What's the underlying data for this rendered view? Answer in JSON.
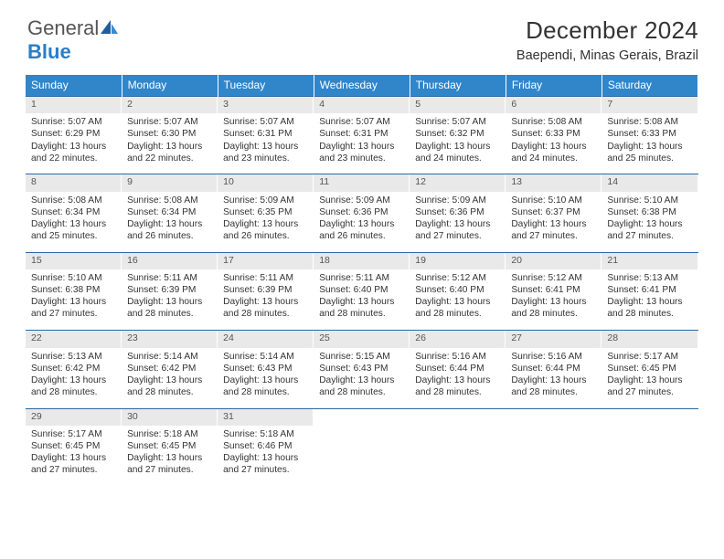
{
  "brand": {
    "part1": "General",
    "part2": "Blue"
  },
  "header": {
    "title": "December 2024",
    "location": "Baependi, Minas Gerais, Brazil"
  },
  "colors": {
    "header_bg": "#3185c9",
    "header_text": "#ffffff",
    "daynum_bg": "#e9e9e9",
    "row_border": "#2b69a3",
    "body_text": "#333333",
    "brand_gray": "#555555",
    "brand_blue": "#2a7ec6",
    "page_bg": "#ffffff"
  },
  "weekdays": [
    "Sunday",
    "Monday",
    "Tuesday",
    "Wednesday",
    "Thursday",
    "Friday",
    "Saturday"
  ],
  "days": [
    {
      "n": 1,
      "sr": "5:07 AM",
      "ss": "6:29 PM",
      "dl": "13 hours and 22 minutes."
    },
    {
      "n": 2,
      "sr": "5:07 AM",
      "ss": "6:30 PM",
      "dl": "13 hours and 22 minutes."
    },
    {
      "n": 3,
      "sr": "5:07 AM",
      "ss": "6:31 PM",
      "dl": "13 hours and 23 minutes."
    },
    {
      "n": 4,
      "sr": "5:07 AM",
      "ss": "6:31 PM",
      "dl": "13 hours and 23 minutes."
    },
    {
      "n": 5,
      "sr": "5:07 AM",
      "ss": "6:32 PM",
      "dl": "13 hours and 24 minutes."
    },
    {
      "n": 6,
      "sr": "5:08 AM",
      "ss": "6:33 PM",
      "dl": "13 hours and 24 minutes."
    },
    {
      "n": 7,
      "sr": "5:08 AM",
      "ss": "6:33 PM",
      "dl": "13 hours and 25 minutes."
    },
    {
      "n": 8,
      "sr": "5:08 AM",
      "ss": "6:34 PM",
      "dl": "13 hours and 25 minutes."
    },
    {
      "n": 9,
      "sr": "5:08 AM",
      "ss": "6:34 PM",
      "dl": "13 hours and 26 minutes."
    },
    {
      "n": 10,
      "sr": "5:09 AM",
      "ss": "6:35 PM",
      "dl": "13 hours and 26 minutes."
    },
    {
      "n": 11,
      "sr": "5:09 AM",
      "ss": "6:36 PM",
      "dl": "13 hours and 26 minutes."
    },
    {
      "n": 12,
      "sr": "5:09 AM",
      "ss": "6:36 PM",
      "dl": "13 hours and 27 minutes."
    },
    {
      "n": 13,
      "sr": "5:10 AM",
      "ss": "6:37 PM",
      "dl": "13 hours and 27 minutes."
    },
    {
      "n": 14,
      "sr": "5:10 AM",
      "ss": "6:38 PM",
      "dl": "13 hours and 27 minutes."
    },
    {
      "n": 15,
      "sr": "5:10 AM",
      "ss": "6:38 PM",
      "dl": "13 hours and 27 minutes."
    },
    {
      "n": 16,
      "sr": "5:11 AM",
      "ss": "6:39 PM",
      "dl": "13 hours and 28 minutes."
    },
    {
      "n": 17,
      "sr": "5:11 AM",
      "ss": "6:39 PM",
      "dl": "13 hours and 28 minutes."
    },
    {
      "n": 18,
      "sr": "5:11 AM",
      "ss": "6:40 PM",
      "dl": "13 hours and 28 minutes."
    },
    {
      "n": 19,
      "sr": "5:12 AM",
      "ss": "6:40 PM",
      "dl": "13 hours and 28 minutes."
    },
    {
      "n": 20,
      "sr": "5:12 AM",
      "ss": "6:41 PM",
      "dl": "13 hours and 28 minutes."
    },
    {
      "n": 21,
      "sr": "5:13 AM",
      "ss": "6:41 PM",
      "dl": "13 hours and 28 minutes."
    },
    {
      "n": 22,
      "sr": "5:13 AM",
      "ss": "6:42 PM",
      "dl": "13 hours and 28 minutes."
    },
    {
      "n": 23,
      "sr": "5:14 AM",
      "ss": "6:42 PM",
      "dl": "13 hours and 28 minutes."
    },
    {
      "n": 24,
      "sr": "5:14 AM",
      "ss": "6:43 PM",
      "dl": "13 hours and 28 minutes."
    },
    {
      "n": 25,
      "sr": "5:15 AM",
      "ss": "6:43 PM",
      "dl": "13 hours and 28 minutes."
    },
    {
      "n": 26,
      "sr": "5:16 AM",
      "ss": "6:44 PM",
      "dl": "13 hours and 28 minutes."
    },
    {
      "n": 27,
      "sr": "5:16 AM",
      "ss": "6:44 PM",
      "dl": "13 hours and 28 minutes."
    },
    {
      "n": 28,
      "sr": "5:17 AM",
      "ss": "6:45 PM",
      "dl": "13 hours and 27 minutes."
    },
    {
      "n": 29,
      "sr": "5:17 AM",
      "ss": "6:45 PM",
      "dl": "13 hours and 27 minutes."
    },
    {
      "n": 30,
      "sr": "5:18 AM",
      "ss": "6:45 PM",
      "dl": "13 hours and 27 minutes."
    },
    {
      "n": 31,
      "sr": "5:18 AM",
      "ss": "6:46 PM",
      "dl": "13 hours and 27 minutes."
    }
  ],
  "labels": {
    "sunrise": "Sunrise:",
    "sunset": "Sunset:",
    "daylight": "Daylight:"
  },
  "layout": {
    "first_weekday_index": 0,
    "trailing_blanks": 4
  }
}
